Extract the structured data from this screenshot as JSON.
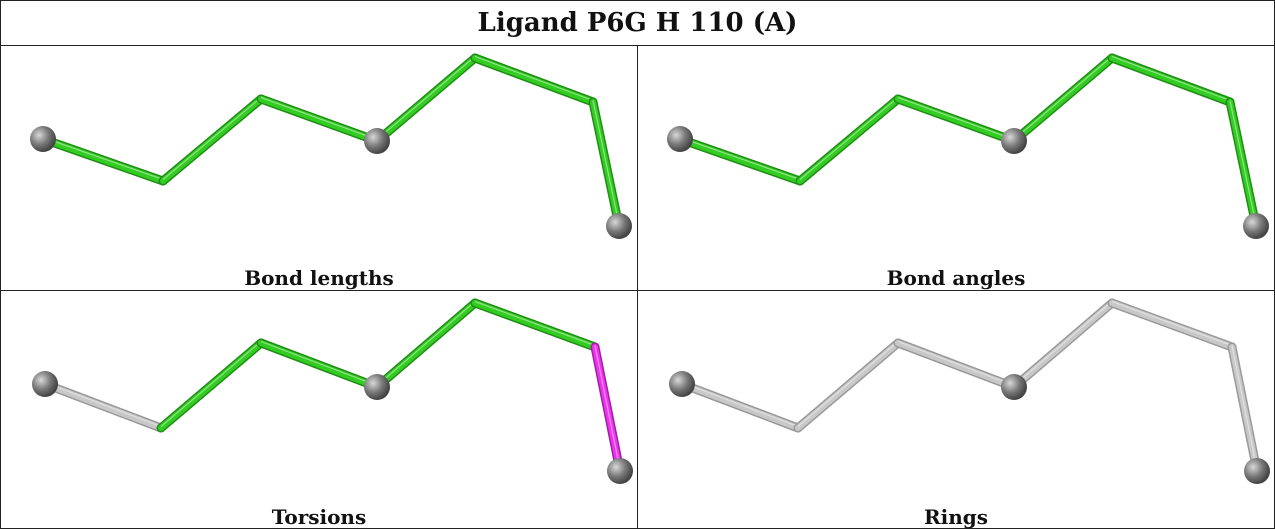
{
  "title": "Ligand P6G H 110 (A)",
  "colors": {
    "ok": "#33cc22",
    "outlier": "#ee33ee",
    "neutral": "#c8c8c8",
    "atom": "#7a7a7a"
  },
  "panels": [
    {
      "caption": "Bond lengths",
      "bond_colors": [
        "ok",
        "ok",
        "ok",
        "ok",
        "ok",
        "ok",
        "ok"
      ]
    },
    {
      "caption": "Bond angles",
      "bond_colors": [
        "ok",
        "ok",
        "ok",
        "ok",
        "ok",
        "ok",
        "ok"
      ]
    },
    {
      "caption": "Torsions",
      "bond_colors": [
        "neutral",
        "ok",
        "ok",
        "ok",
        "ok",
        "outlier",
        "neutral"
      ]
    },
    {
      "caption": "Rings",
      "bond_colors": [
        "neutral",
        "neutral",
        "neutral",
        "neutral",
        "neutral",
        "neutral",
        "neutral"
      ]
    }
  ]
}
